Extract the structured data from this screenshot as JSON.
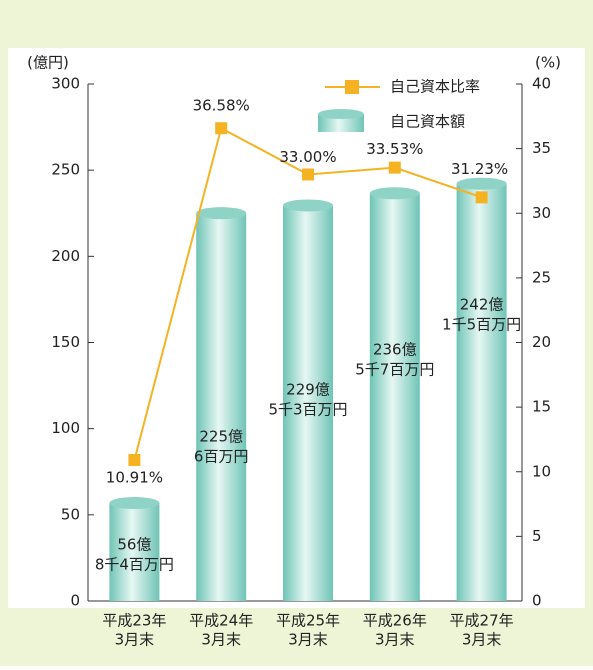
{
  "chart_data": {
    "type": "bar",
    "ylabel": "(億円)",
    "y2label": "(%)",
    "categories": [
      [
        "平成23年",
        "3月末"
      ],
      [
        "平成24年",
        "3月末"
      ],
      [
        "平成25年",
        "3月末"
      ],
      [
        "平成26年",
        "3月末"
      ],
      [
        "平成27年",
        "3月末"
      ]
    ],
    "series": [
      {
        "name": "自己資本額",
        "type": "bar",
        "color": "#8fd3c7",
        "values": [
          56.84,
          225.06,
          229.53,
          236.57,
          242.15
        ],
        "value_labels": [
          [
            "56億",
            "8千4百万円"
          ],
          [
            "225億",
            "6百万円"
          ],
          [
            "229億",
            "5千3百万円"
          ],
          [
            "236億",
            "5千7百万円"
          ],
          [
            "242億",
            "1千5百万円"
          ]
        ]
      },
      {
        "name": "自己資本比率",
        "type": "line",
        "axis": "y2",
        "color": "#f5b324",
        "values": [
          10.91,
          36.58,
          33.0,
          33.53,
          31.23
        ],
        "value_labels": [
          "10.91%",
          "36.58%",
          "33.00%",
          "33.53%",
          "31.23%"
        ]
      }
    ],
    "ylim": [
      0,
      300
    ],
    "yticks": [
      0,
      50,
      100,
      150,
      200,
      250,
      300
    ],
    "y2lim": [
      0,
      40
    ],
    "y2ticks": [
      0,
      5,
      10,
      15,
      20,
      25,
      30,
      35,
      40
    ]
  }
}
